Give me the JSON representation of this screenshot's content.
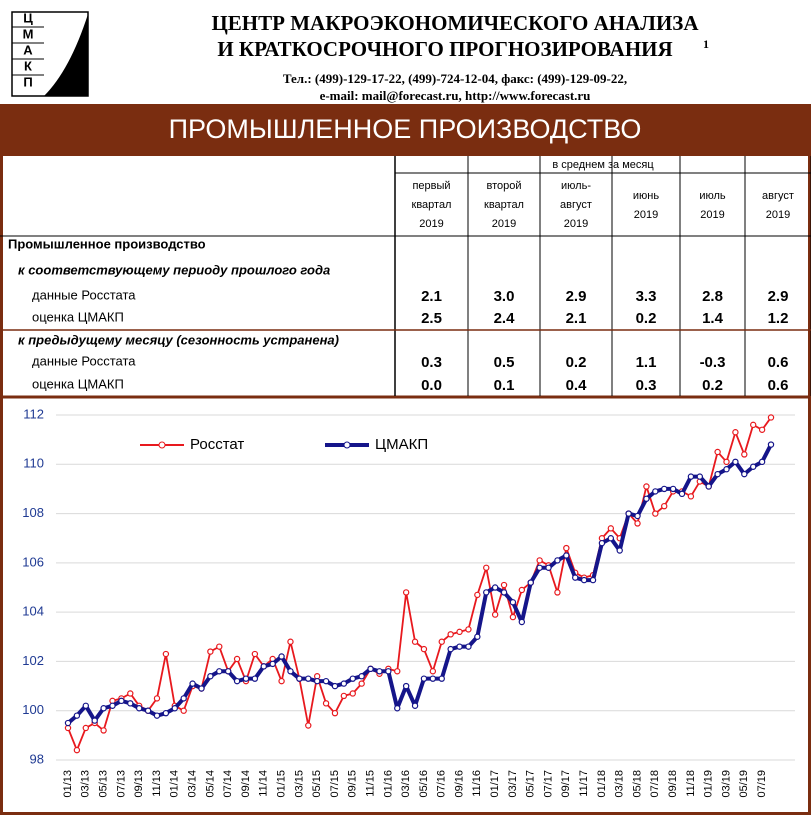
{
  "header": {
    "logo": [
      "Ц",
      "М",
      "А",
      "К",
      "П"
    ],
    "title_lines": [
      "ЦЕНТР МАКРОЭКОНОМИЧЕСКОГО АНАЛИЗА",
      "И КРАТКОСРОЧНОГО ПРОГНОЗИРОВАНИЯ"
    ],
    "footnote": "1",
    "contacts": [
      "Тел.: (499)-129-17-22, (499)-724-12-04, факс: (499)-129-09-22,",
      "e-mail: mail@forecast.ru, http://www.forecast.ru"
    ],
    "banner": "ПРОМЫШЛЕННОЕ ПРОИЗВОДСТВО"
  },
  "table": {
    "group_header": "в среднем за месяц",
    "columns": [
      [
        "первый",
        "квартал",
        "2019"
      ],
      [
        "второй",
        "квартал",
        "2019"
      ],
      [
        "июль-",
        "август",
        "2019"
      ],
      [
        "июнь",
        "2019"
      ],
      [
        "июль",
        "2019"
      ],
      [
        "август",
        "2019"
      ]
    ],
    "rows": [
      {
        "label": "Промышленное производство",
        "style": "bold"
      },
      {
        "label": "к соответствующему периоду прошлого года",
        "style": "italic"
      },
      {
        "label": "данные Росстата",
        "style": "plain",
        "values": [
          "2.1",
          "3.0",
          "2.9",
          "3.3",
          "2.8",
          "2.9"
        ]
      },
      {
        "label": "оценка ЦМАКП",
        "style": "plain",
        "values": [
          "2.5",
          "2.4",
          "2.1",
          "0.2",
          "1.4",
          "1.2"
        ]
      },
      {
        "label": "к предыдущему месяцу (сезонность устранена)",
        "style": "italic"
      },
      {
        "label": "данные Росстата",
        "style": "plain",
        "values": [
          "0.3",
          "0.5",
          "0.2",
          "1.1",
          "-0.3",
          "0.6"
        ]
      },
      {
        "label": "оценка ЦМАКП",
        "style": "plain",
        "values": [
          "0.0",
          "0.1",
          "0.4",
          "0.3",
          "0.2",
          "0.6"
        ]
      }
    ]
  },
  "chart_data": {
    "type": "line",
    "categories": [
      "01/13",
      null,
      "03/13",
      null,
      "05/13",
      null,
      "07/13",
      null,
      "09/13",
      null,
      "11/13",
      null,
      "01/14",
      null,
      "03/14",
      null,
      "05/14",
      null,
      "07/14",
      null,
      "09/14",
      null,
      "11/14",
      null,
      "01/15",
      null,
      "03/15",
      null,
      "05/15",
      null,
      "07/15",
      null,
      "09/15",
      null,
      "11/15",
      null,
      "01/16",
      null,
      "03/16",
      null,
      "05/16",
      null,
      "07/16",
      null,
      "09/16",
      null,
      "11/16",
      null,
      "01/17",
      null,
      "03/17",
      null,
      "05/17",
      null,
      "07/17",
      null,
      "09/17",
      null,
      "11/17",
      null,
      "01/18",
      null,
      "03/18",
      null,
      "05/18",
      null,
      "07/18",
      null,
      "09/18",
      null,
      "11/18",
      null,
      "01/19",
      null,
      "03/19",
      null,
      "05/19",
      null,
      "07/19",
      null
    ],
    "series": [
      {
        "name": "Росстат",
        "color": "#e8191e",
        "values": [
          99.3,
          98.4,
          99.3,
          99.5,
          99.2,
          100.4,
          100.5,
          100.7,
          100.2,
          100.0,
          100.5,
          102.3,
          100.2,
          100.0,
          101.0,
          100.9,
          102.4,
          102.6,
          101.6,
          102.1,
          101.2,
          102.3,
          101.8,
          102.1,
          101.2,
          102.8,
          101.3,
          99.4,
          101.4,
          100.3,
          99.9,
          100.6,
          100.7,
          101.1,
          101.7,
          101.5,
          101.7,
          101.6,
          104.8,
          102.8,
          102.5,
          101.6,
          102.8,
          103.1,
          103.2,
          103.3,
          104.7,
          105.8,
          103.9,
          105.1,
          103.8,
          104.9,
          105.2,
          106.1,
          105.9,
          104.8,
          106.6,
          105.6,
          105.4,
          105.5,
          107.0,
          107.4,
          107.0,
          108.0,
          107.6,
          109.1,
          108.0,
          108.3,
          108.9,
          108.9,
          108.7,
          109.3,
          109.1,
          110.5,
          110.1,
          111.3,
          110.4,
          111.6,
          111.4,
          111.9
        ]
      },
      {
        "name": "ЦМАКП",
        "color": "#15158a",
        "values": [
          99.5,
          99.8,
          100.2,
          99.6,
          100.1,
          100.2,
          100.4,
          100.3,
          100.1,
          100.0,
          99.8,
          99.9,
          100.1,
          100.5,
          101.1,
          100.9,
          101.4,
          101.6,
          101.6,
          101.2,
          101.3,
          101.3,
          101.8,
          101.9,
          102.2,
          101.6,
          101.3,
          101.3,
          101.2,
          101.2,
          101.0,
          101.1,
          101.3,
          101.4,
          101.7,
          101.6,
          101.6,
          100.1,
          101.0,
          100.2,
          101.3,
          101.3,
          101.3,
          102.5,
          102.6,
          102.6,
          103.0,
          104.8,
          105.0,
          104.8,
          104.4,
          103.6,
          105.2,
          105.8,
          105.8,
          106.1,
          106.3,
          105.4,
          105.3,
          105.3,
          106.8,
          107.0,
          106.5,
          108.0,
          107.9,
          108.6,
          108.9,
          109.0,
          109.0,
          108.8,
          109.5,
          109.5,
          109.1,
          109.6,
          109.8,
          110.1,
          109.6,
          109.9,
          110.1,
          110.8
        ]
      }
    ],
    "ylim": [
      98,
      112
    ],
    "yticks": [
      98,
      100,
      102,
      104,
      106,
      108,
      110,
      112
    ],
    "grid": true,
    "legend": "top-left"
  }
}
